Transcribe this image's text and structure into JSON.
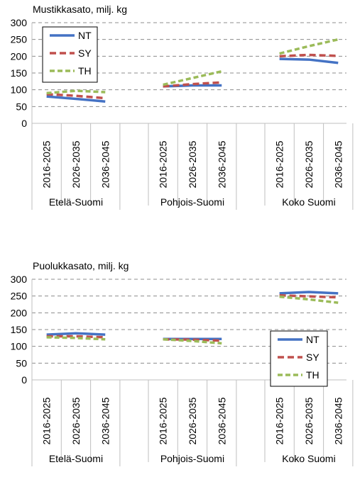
{
  "colors": {
    "NT": "#4472c4",
    "SY": "#c0504d",
    "TH": "#9bbb59",
    "grid": "#8c8c8c",
    "axis": "#bfbfbf"
  },
  "chart_data": [
    {
      "type": "line",
      "title": "Mustikkasato, milj. kg",
      "ylim": [
        0,
        300
      ],
      "yticks": [
        0,
        50,
        100,
        150,
        200,
        250,
        300
      ],
      "grid": true,
      "legend": "top-left",
      "groups": [
        {
          "label": "Etelä-Suomi",
          "categories": [
            "2016-2025",
            "2026-2035",
            "2036-2045"
          ]
        },
        {
          "label": "Pohjois-Suomi",
          "categories": [
            "2016-2025",
            "2026-2035",
            "2036-2045"
          ]
        },
        {
          "label": "Koko Suomi",
          "categories": [
            "2016-2025",
            "2026-2035",
            "2036-2045"
          ]
        }
      ],
      "series": [
        {
          "name": "NT",
          "values": [
            [
              80,
              73,
              65
            ],
            [
              110,
              113,
              113
            ],
            [
              192,
              190,
              180
            ]
          ]
        },
        {
          "name": "SY",
          "values": [
            [
              87,
              82,
              75
            ],
            [
              110,
              117,
              122
            ],
            [
              200,
              204,
              201
            ]
          ]
        },
        {
          "name": "TH",
          "values": [
            [
              90,
              97,
              93
            ],
            [
              115,
              135,
              155
            ],
            [
              208,
              230,
              250
            ]
          ]
        }
      ]
    },
    {
      "type": "line",
      "title": "Puolukkasato, milj. kg",
      "ylim": [
        0,
        300
      ],
      "yticks": [
        0,
        50,
        100,
        150,
        200,
        250,
        300
      ],
      "grid": true,
      "legend": "right",
      "groups": [
        {
          "label": "Etelä-Suomi",
          "categories": [
            "2016-2025",
            "2026-2035",
            "2036-2045"
          ]
        },
        {
          "label": "Pohjois-Suomi",
          "categories": [
            "2016-2025",
            "2026-2035",
            "2036-2045"
          ]
        },
        {
          "label": "Koko Suomi",
          "categories": [
            "2016-2025",
            "2026-2035",
            "2036-2045"
          ]
        }
      ],
      "series": [
        {
          "name": "NT",
          "values": [
            [
              135,
              139,
              135
            ],
            [
              122,
              122,
              122
            ],
            [
              258,
              262,
              258
            ]
          ]
        },
        {
          "name": "SY",
          "values": [
            [
              130,
              130,
              127
            ],
            [
              121,
              120,
              117
            ],
            [
              252,
              249,
              246
            ]
          ]
        },
        {
          "name": "TH",
          "values": [
            [
              127,
              125,
              121
            ],
            [
              121,
              116,
              109
            ],
            [
              248,
              240,
              230
            ]
          ]
        }
      ]
    }
  ]
}
